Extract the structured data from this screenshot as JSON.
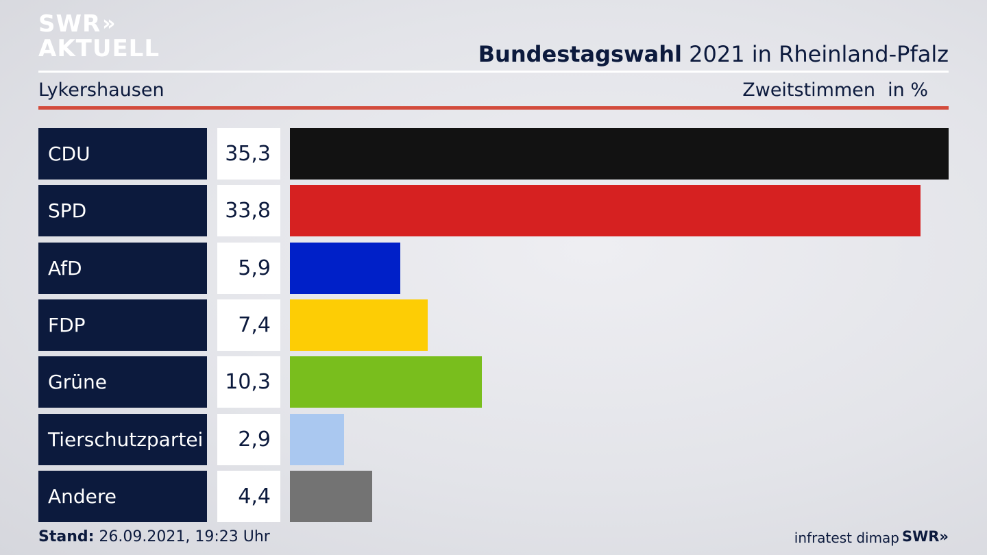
{
  "brand": {
    "logo_line1": "SWR",
    "logo_chevrons": "»",
    "logo_line2": "AKTUELL"
  },
  "header": {
    "title_bold": "Bundestagswahl",
    "title_rest": " 2021 in Rheinland-Pfalz",
    "region": "Lykershausen",
    "vote_type": "Zweitstimmen",
    "unit": "in %"
  },
  "chart_data": {
    "type": "bar",
    "orientation": "horizontal",
    "categories": [
      "CDU",
      "SPD",
      "AfD",
      "FDP",
      "Grüne",
      "Tierschutzpartei",
      "Andere"
    ],
    "values": [
      35.3,
      33.8,
      5.9,
      7.4,
      10.3,
      2.9,
      4.4
    ],
    "value_labels": [
      "35,3",
      "33,8",
      "5,9",
      "7,4",
      "10,3",
      "2,9",
      "4,4"
    ],
    "colors": [
      "#121212",
      "#d62121",
      "#0020c8",
      "#fdcd05",
      "#79be1d",
      "#aac8f0",
      "#737373"
    ],
    "xlim": [
      0,
      35.3
    ],
    "grid": false
  },
  "footer": {
    "stand_label": "Stand:",
    "stand_value": " 26.09.2021, 19:23 Uhr",
    "source": "infratest dimap",
    "brand_small": "SWR»"
  }
}
